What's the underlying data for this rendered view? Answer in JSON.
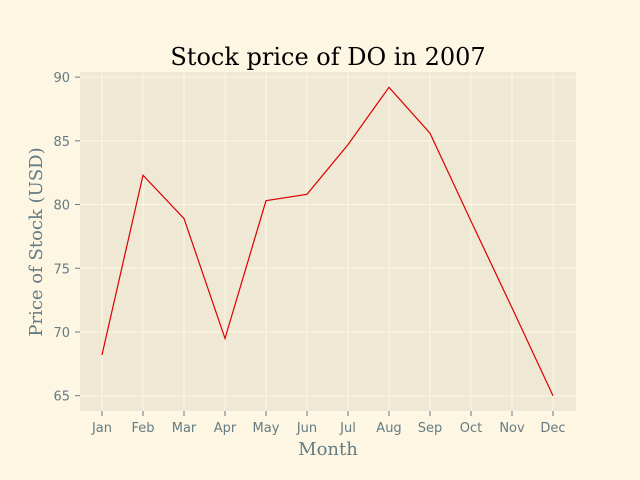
{
  "chart_data": {
    "type": "line",
    "title": "Stock price of DO in 2007",
    "xlabel": "Month",
    "ylabel": "Price of Stock (USD)",
    "categories": [
      "Jan",
      "Feb",
      "Mar",
      "Apr",
      "May",
      "Jun",
      "Jul",
      "Aug",
      "Sep",
      "Oct",
      "Nov",
      "Dec"
    ],
    "series": [
      {
        "values": [
          68.2,
          82.3,
          78.9,
          69.5,
          80.3,
          80.8,
          84.7,
          89.2,
          85.6,
          78.7,
          71.9,
          65.0
        ]
      }
    ],
    "ylim": [
      63.8,
      90.4
    ],
    "yticks": [
      65,
      70,
      75,
      80,
      85,
      90
    ],
    "grid": true,
    "colors": {
      "line": "#dc0000",
      "plot_background": "#eee8d5",
      "grid": "#fdf6e3",
      "page_background": "#fdf6e3"
    }
  }
}
